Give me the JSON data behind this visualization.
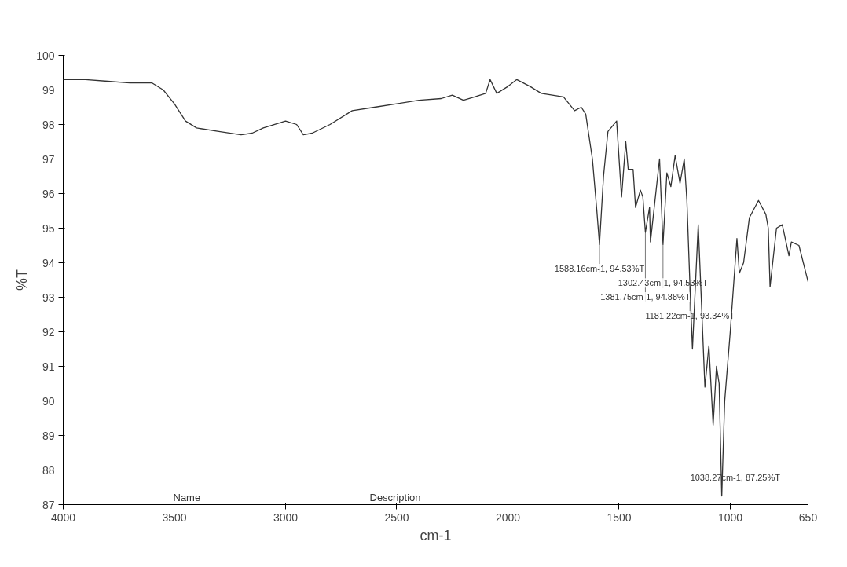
{
  "chart_data": {
    "type": "line",
    "xlabel": "cm-1",
    "ylabel": "%T",
    "x": [
      4000,
      3900,
      3800,
      3700,
      3600,
      3550,
      3500,
      3450,
      3400,
      3300,
      3200,
      3150,
      3100,
      3000,
      2950,
      2920,
      2880,
      2800,
      2700,
      2600,
      2500,
      2400,
      2300,
      2250,
      2200,
      2150,
      2100,
      2080,
      2050,
      2000,
      1960,
      1900,
      1850,
      1750,
      1700,
      1670,
      1650,
      1620,
      1600,
      1588.16,
      1570,
      1550,
      1511,
      1489,
      1470,
      1459,
      1437,
      1426,
      1404,
      1393,
      1381.75,
      1363,
      1359,
      1318,
      1302.43,
      1285,
      1267,
      1248,
      1226,
      1207,
      1195,
      1181.22,
      1170,
      1144,
      1114,
      1096,
      1077,
      1062,
      1050,
      1038.27,
      1025,
      1000,
      970,
      959,
      940,
      914,
      873,
      840,
      829,
      821,
      792,
      766,
      736,
      725,
      691,
      650
    ],
    "series": [
      {
        "color": "#333333",
        "values": [
          99.3,
          99.3,
          99.25,
          99.2,
          99.2,
          99.0,
          98.6,
          98.1,
          97.9,
          97.8,
          97.7,
          97.75,
          97.9,
          98.1,
          98.0,
          97.7,
          97.75,
          98.0,
          98.4,
          98.5,
          98.6,
          98.7,
          98.75,
          98.85,
          98.7,
          98.8,
          98.9,
          99.3,
          98.9,
          99.1,
          99.3,
          99.1,
          98.9,
          98.8,
          98.4,
          98.5,
          98.3,
          97.0,
          95.5,
          94.53,
          96.5,
          97.8,
          98.1,
          95.9,
          97.5,
          96.7,
          96.7,
          95.6,
          96.1,
          95.9,
          94.88,
          95.6,
          94.6,
          97.0,
          94.53,
          96.6,
          96.2,
          97.1,
          96.3,
          97.0,
          95.8,
          93.34,
          91.5,
          95.1,
          90.4,
          91.6,
          89.3,
          91.0,
          90.5,
          87.25,
          90.0,
          92.0,
          94.7,
          93.7,
          94.0,
          95.3,
          95.8,
          95.4,
          95.0,
          93.3,
          95.0,
          95.1,
          94.2,
          94.6,
          94.5,
          93.45
        ]
      }
    ],
    "xlim": [
      4000,
      650
    ],
    "xticks": [
      4000,
      3500,
      3000,
      2500,
      2000,
      1500,
      1000,
      650
    ],
    "ylim": [
      87,
      100
    ],
    "yticks": [
      87,
      88,
      89,
      90,
      91,
      92,
      93,
      94,
      95,
      96,
      97,
      98,
      99,
      100
    ],
    "grid": false,
    "annotations": [
      {
        "text": "1588.16cm-1, 94.53%T",
        "x": 1588.16,
        "y": 94.53
      },
      {
        "text": "1302.43cm-1, 94.53%T",
        "x": 1302.43,
        "y": 94.53
      },
      {
        "text": "1381.75cm-1, 94.88%T",
        "x": 1381.75,
        "y": 94.88
      },
      {
        "text": "1181.22cm-1, 93.34%T",
        "x": 1181.22,
        "y": 93.34
      },
      {
        "text": "1038.27cm-1, 87.25%T",
        "x": 1038.27,
        "y": 87.25
      },
      "Name",
      "Description"
    ]
  }
}
